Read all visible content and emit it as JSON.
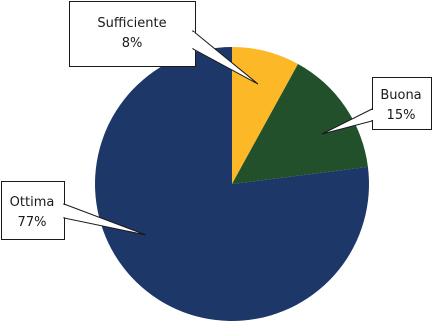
{
  "chart_data": {
    "type": "pie",
    "title": "",
    "start_angle_deg": 0,
    "direction": "clockwise",
    "slices": [
      {
        "label": "Sufficiente",
        "value": 8,
        "value_label": "8%",
        "color": "#FDB827"
      },
      {
        "label": "Buona",
        "value": 15,
        "value_label": "15%",
        "color": "#22502A"
      },
      {
        "label": "Ottima",
        "value": 77,
        "value_label": "77%",
        "color": "#1E3769"
      }
    ],
    "legend": "none",
    "data_labels": "callouts"
  }
}
